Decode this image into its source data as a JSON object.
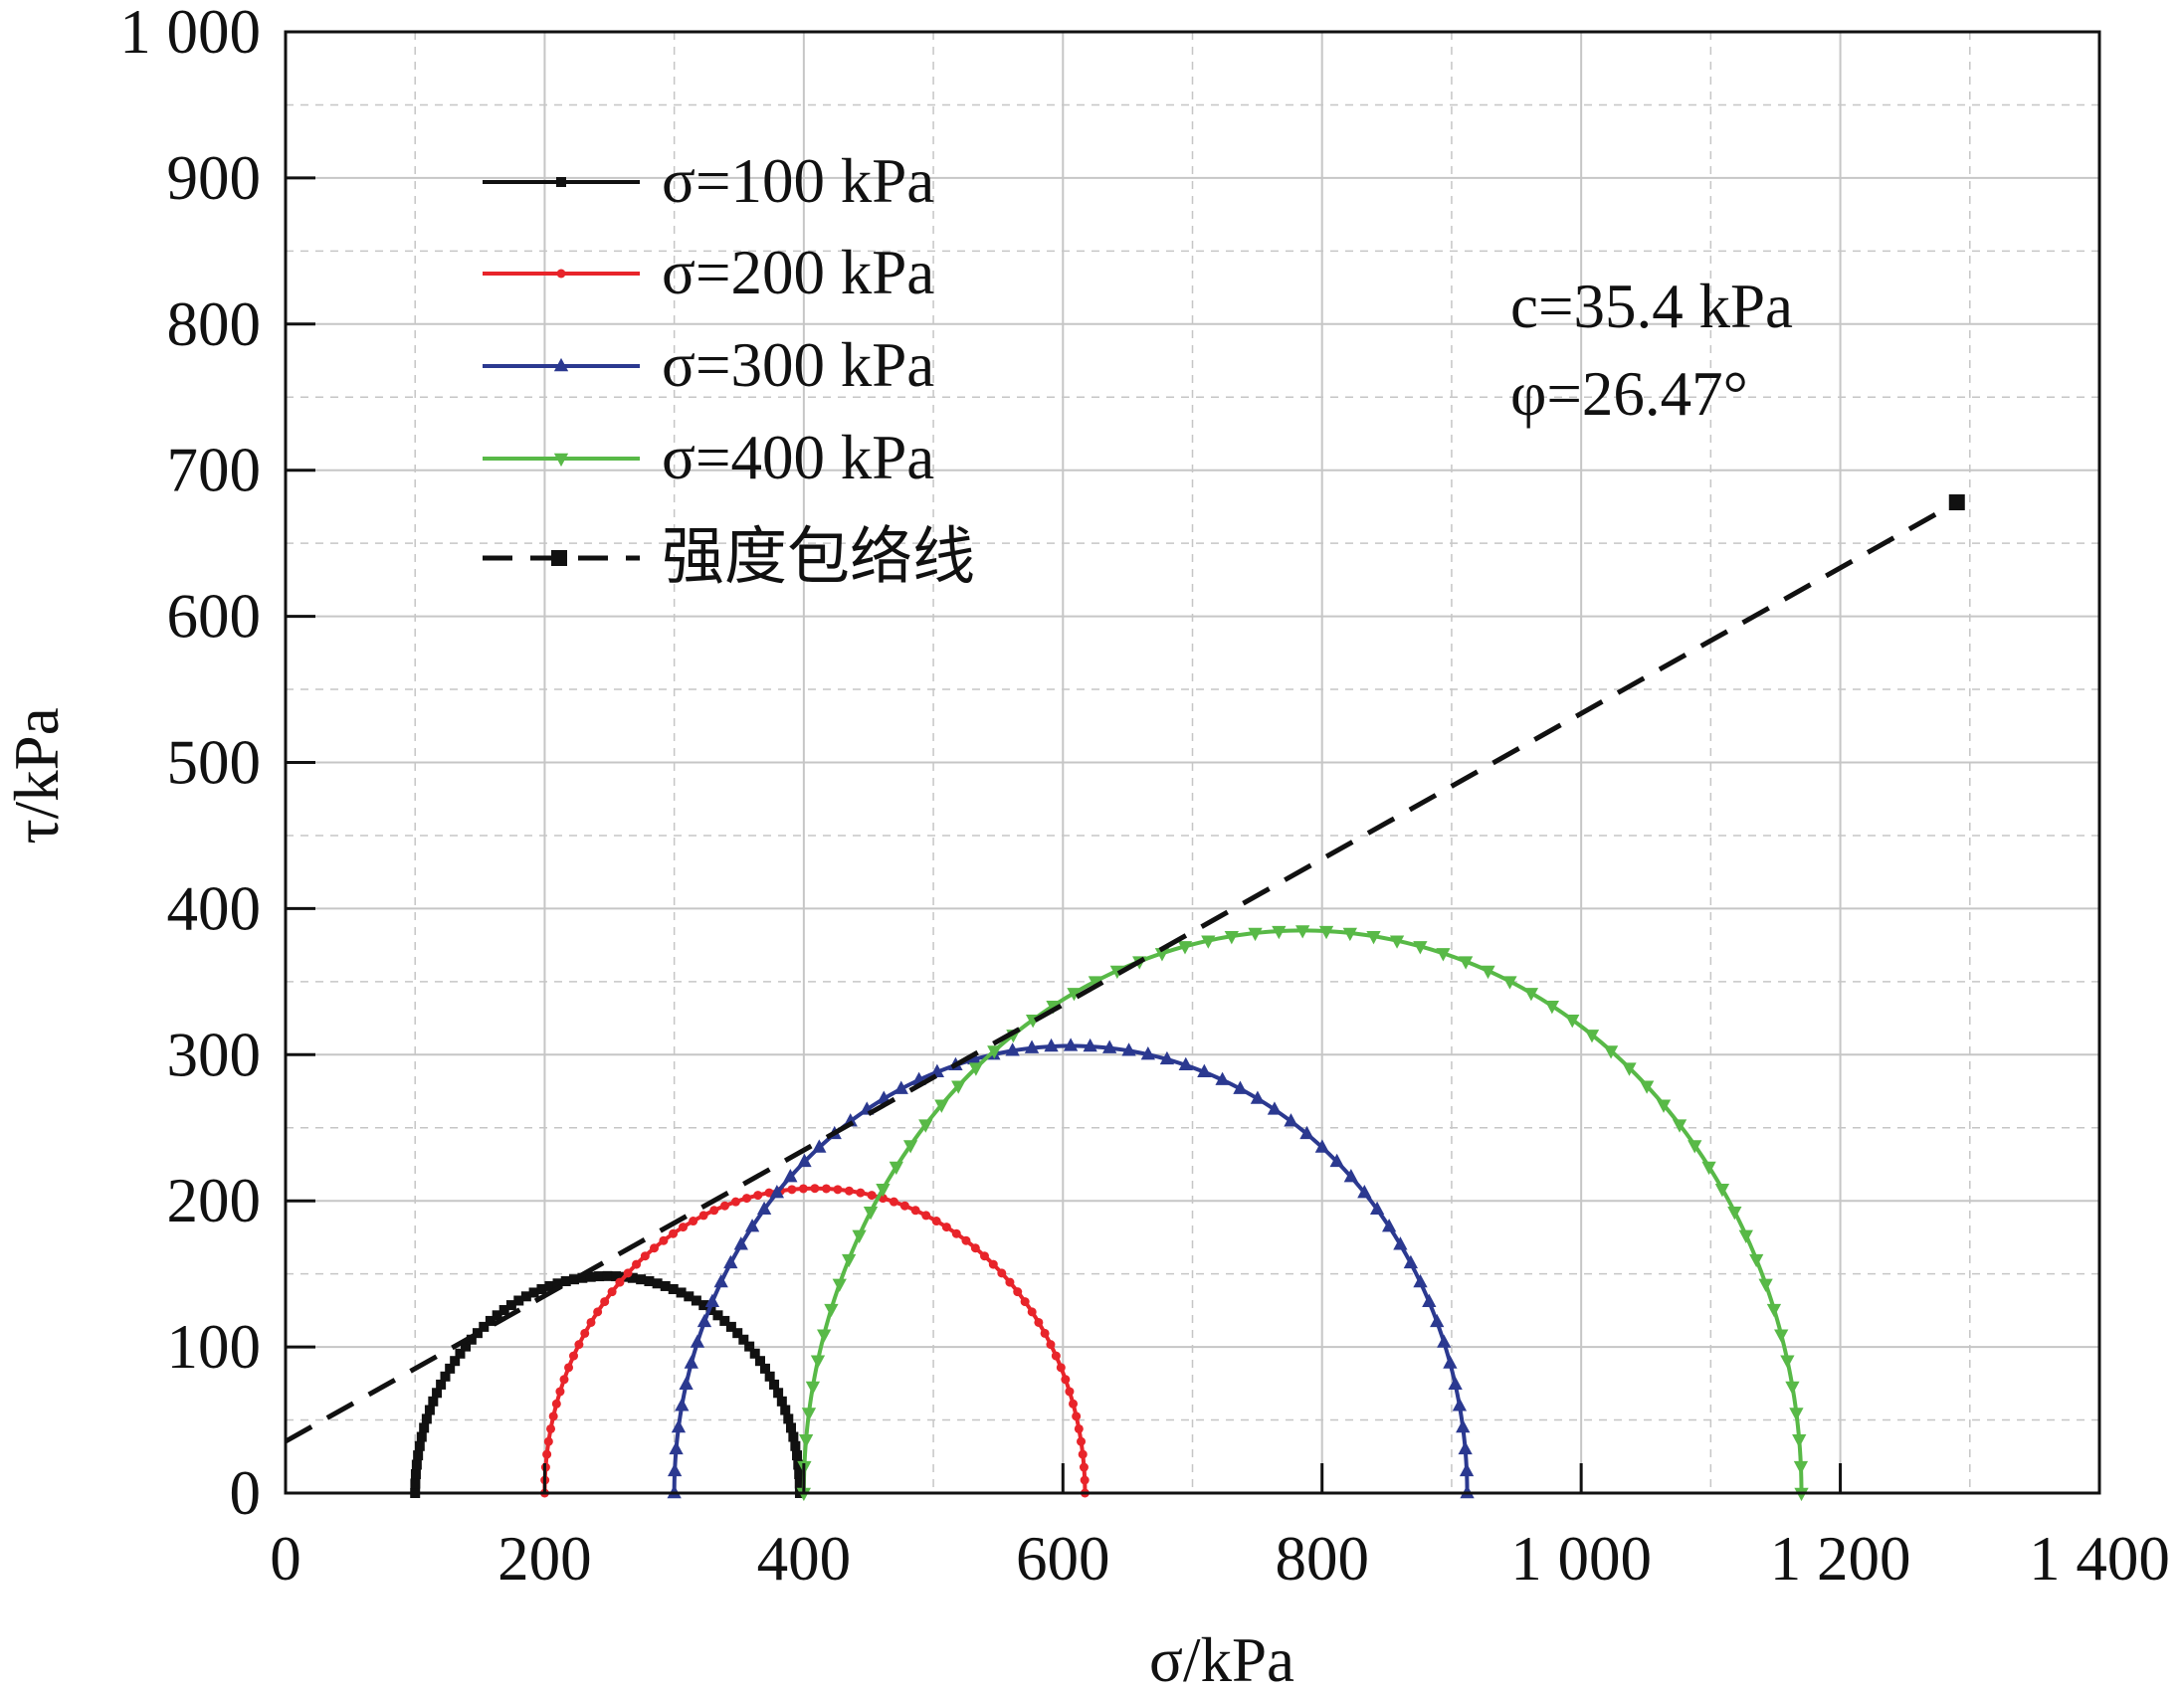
{
  "colors": {
    "s100": "#111111",
    "s200": "#e8242a",
    "s300": "#2b3990",
    "s400": "#58b947",
    "envelope": "#111111",
    "grid": "#c6c6c6"
  },
  "chart_data": {
    "type": "line",
    "xlabel": "σ/kPa",
    "ylabel": "τ/kPa",
    "xlim": [
      0,
      1400
    ],
    "ylim": [
      0,
      1000
    ],
    "xticks": [
      0,
      200,
      400,
      600,
      800,
      1000,
      1200,
      1400
    ],
    "yticks": [
      0,
      100,
      200,
      300,
      400,
      500,
      600,
      700,
      800,
      900,
      1000
    ],
    "xtick_labels": [
      "0",
      "200",
      "400",
      "600",
      "800",
      "1 000",
      "1 200",
      "1 400"
    ],
    "ytick_labels": [
      "0",
      "100",
      "200",
      "300",
      "400",
      "500",
      "600",
      "700",
      "800",
      "900",
      "1 000"
    ],
    "grid": true,
    "legend_position": "top-left",
    "series": [
      {
        "name": "σ=100 kPa",
        "kind": "mohr-circle",
        "sigma3": 100,
        "sigma1": 397,
        "center": 248.5,
        "radius": 148.5,
        "marker": "square",
        "color": "#111111"
      },
      {
        "name": "σ=200 kPa",
        "kind": "mohr-circle",
        "sigma3": 200,
        "sigma1": 617,
        "center": 408.5,
        "radius": 208.5,
        "marker": "circle",
        "color": "#e8242a"
      },
      {
        "name": "σ=300 kPa",
        "kind": "mohr-circle",
        "sigma3": 300,
        "sigma1": 912,
        "center": 606,
        "radius": 306,
        "marker": "triangle-up",
        "color": "#2b3990"
      },
      {
        "name": "σ=400 kPa",
        "kind": "mohr-circle",
        "sigma3": 400,
        "sigma1": 1170,
        "center": 785,
        "radius": 385,
        "marker": "triangle-down",
        "color": "#58b947"
      },
      {
        "name": "强度包络线",
        "kind": "envelope-line",
        "x": [
          0,
          1290
        ],
        "y": [
          35.4,
          678
        ],
        "marker": "square",
        "color": "#111111"
      }
    ],
    "annotations": [
      "c=35.4 kPa",
      "φ=26.47°"
    ]
  }
}
